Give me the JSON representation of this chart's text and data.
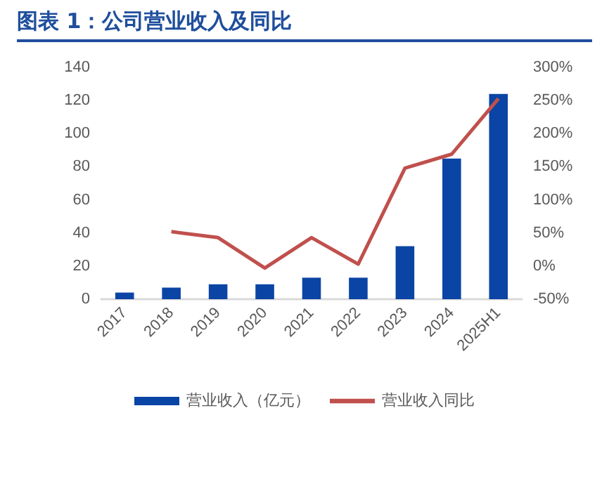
{
  "chart_data": {
    "type": "bar",
    "title": "图表 1：公司营业收入及同比",
    "categories": [
      "2017",
      "2018",
      "2019",
      "2020",
      "2021",
      "2022",
      "2023",
      "2024",
      "2025H1"
    ],
    "series": [
      {
        "name": "营业收入（亿元）",
        "color": "#0a44a4",
        "values": [
          4,
          7,
          9,
          9,
          13,
          13,
          32,
          85,
          124
        ]
      },
      {
        "name": "营业收入同比",
        "type": "line",
        "axis": "y2",
        "color": "#c0504d",
        "values": [
          null,
          52,
          43,
          -3,
          43,
          3,
          148,
          169,
          253
        ]
      }
    ],
    "ylim": [
      0,
      140
    ],
    "yticks": [
      0,
      20,
      40,
      60,
      80,
      100,
      120,
      140
    ],
    "y2lim": [
      -50,
      300
    ],
    "y2ticks": [
      {
        "value": -50,
        "label": "-50%"
      },
      {
        "value": 0,
        "label": "0%"
      },
      {
        "value": 50,
        "label": "50%"
      },
      {
        "value": 100,
        "label": "100%"
      },
      {
        "value": 150,
        "label": "150%"
      },
      {
        "value": 200,
        "label": "200%"
      },
      {
        "value": 250,
        "label": "250%"
      },
      {
        "value": 300,
        "label": "300%"
      }
    ],
    "grid": false,
    "legend": "bottom",
    "marker": "none",
    "line_style": "solid"
  }
}
